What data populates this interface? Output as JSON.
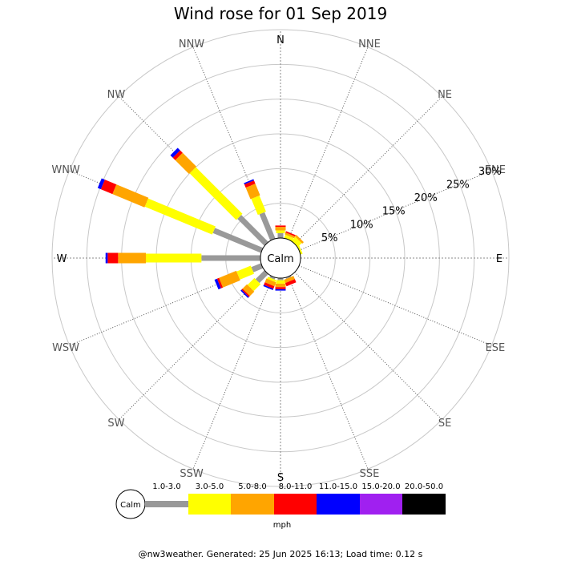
{
  "chart_data": {
    "type": "wind-rose",
    "title": "Wind rose for 01 Sep 2019",
    "calm_label": "Calm",
    "directions": [
      "N",
      "NNE",
      "NE",
      "ENE",
      "E",
      "ESE",
      "SE",
      "SSE",
      "S",
      "SSW",
      "SW",
      "WSW",
      "W",
      "WNW",
      "NW",
      "NNW"
    ],
    "radial_ticks": [
      "5%",
      "10%",
      "15%",
      "20%",
      "25%",
      "30%"
    ],
    "radial_tick_values": [
      5,
      10,
      15,
      20,
      25,
      30
    ],
    "rmax": 30,
    "radial_label_direction": "ENE",
    "speed_bins": [
      "1.0-3.0",
      "3.0-5.0",
      "5.0-8.0",
      "8.0-11.0",
      "11.0-15.0",
      "15.0-20.0",
      "20.0-50.0"
    ],
    "bin_colors": [
      "#999999",
      "#ffff00",
      "#ffa500",
      "#ff0000",
      "#0000ff",
      "#a020f0",
      "#000000"
    ],
    "units": "mph",
    "series": [
      {
        "direction": "NNE",
        "values": [
          0,
          0.5,
          0.3,
          0.2,
          0,
          0,
          0
        ]
      },
      {
        "direction": "NE",
        "values": [
          0,
          0.8,
          0.3,
          0,
          0,
          0,
          0
        ]
      },
      {
        "direction": "ENE",
        "values": [
          0,
          0.3,
          0,
          0,
          0,
          0,
          0
        ]
      },
      {
        "direction": "N",
        "values": [
          0.7,
          0.4,
          0.5,
          0.2,
          0,
          0,
          0
        ]
      },
      {
        "direction": "SSE",
        "values": [
          0.2,
          0,
          0.5,
          0.5,
          0,
          0,
          0
        ]
      },
      {
        "direction": "S",
        "values": [
          0.3,
          0.5,
          0.5,
          0.3,
          0.2,
          0,
          0
        ]
      },
      {
        "direction": "SSW",
        "values": [
          0.3,
          0.3,
          0.6,
          0.4,
          0.2,
          0,
          0
        ]
      },
      {
        "direction": "NNW",
        "values": [
          4.1,
          2.5,
          1.8,
          0.5,
          0.2,
          0,
          0
        ]
      },
      {
        "direction": "SW",
        "values": [
          1.8,
          1.4,
          0.9,
          0.2,
          0.2,
          0,
          0
        ]
      },
      {
        "direction": "WSW",
        "values": [
          1.5,
          2.2,
          2.7,
          0.3,
          0.4,
          0,
          0
        ]
      },
      {
        "direction": "NW",
        "values": [
          5.5,
          9.5,
          2.8,
          0.5,
          0.5,
          0,
          0
        ]
      },
      {
        "direction": "W",
        "values": [
          8.5,
          8.0,
          4.0,
          1.5,
          0.3,
          0,
          0
        ]
      },
      {
        "direction": "WNW",
        "values": [
          7.5,
          10.5,
          5.0,
          1.8,
          0.5,
          0,
          0
        ]
      }
    ]
  },
  "legend": {
    "unit_label": "mph"
  },
  "footer": "@nw3weather. Generated: 25 Jun 2025 16:13; Load time: 0.12 s"
}
